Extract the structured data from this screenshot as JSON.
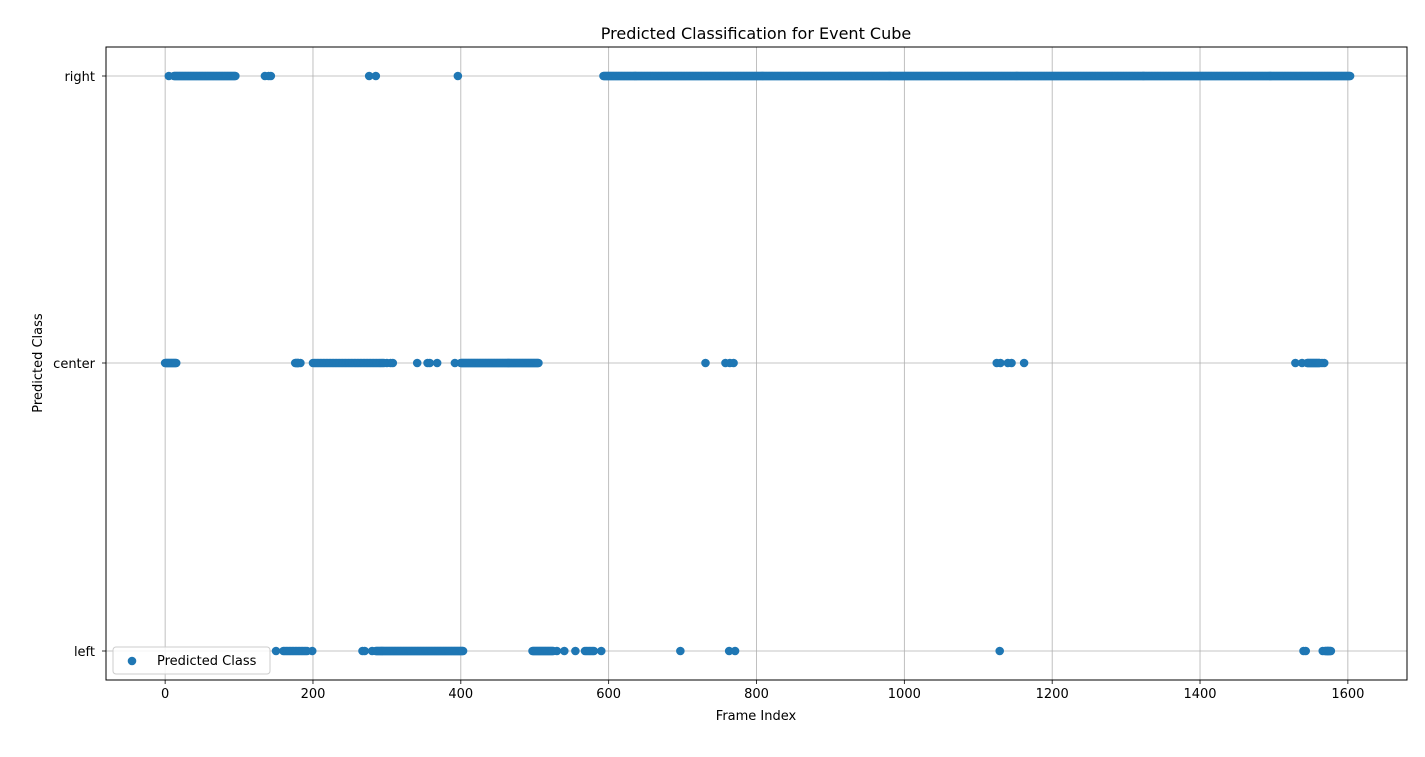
{
  "chart_data": {
    "type": "scatter",
    "title": "Predicted Classification for Event Cube",
    "xlabel": "Frame Index",
    "ylabel": "Predicted Class",
    "xlim": [
      -80,
      1680
    ],
    "x_ticks": [
      0,
      200,
      400,
      600,
      800,
      1000,
      1200,
      1400,
      1600
    ],
    "y_categories": [
      "left",
      "center",
      "right"
    ],
    "grid": true,
    "legend_position": "lower-left",
    "marker_color": "#1f77b4",
    "series": [
      {
        "name": "Predicted Class",
        "points": {
          "right": {
            "single": [
              5,
              135,
              140,
              143,
              276,
              285,
              396
            ],
            "ranges": [
              [
                12,
                95,
                1
              ],
              [
                593,
                1603,
                1
              ]
            ]
          },
          "center": {
            "single": [
              180,
              183,
              300,
              305,
              308,
              341,
              355,
              358,
              368,
              392,
              731,
              758,
              764,
              769,
              1125,
              1130,
              1140,
              1145,
              1162,
              1529,
              1538,
              1565,
              1568
            ],
            "ranges": [
              [
                0,
                15,
                1
              ],
              [
                176,
                180,
                1
              ],
              [
                200,
                296,
                2
              ],
              [
                400,
                505,
                1
              ],
              [
                1545,
                1562,
                1
              ]
            ]
          },
          "left": {
            "single": [
              150,
              199,
              267,
              270,
              280,
              530,
              540,
              555,
              590,
              697,
              763,
              771,
              1129,
              1540,
              1543,
              1566,
              1573
            ],
            "ranges": [
              [
                160,
                193,
                2
              ],
              [
                285,
                403,
                1
              ],
              [
                497,
                525,
                1
              ],
              [
                568,
                580,
                2
              ],
              [
                1569,
                1577,
                1
              ]
            ]
          }
        }
      }
    ]
  }
}
